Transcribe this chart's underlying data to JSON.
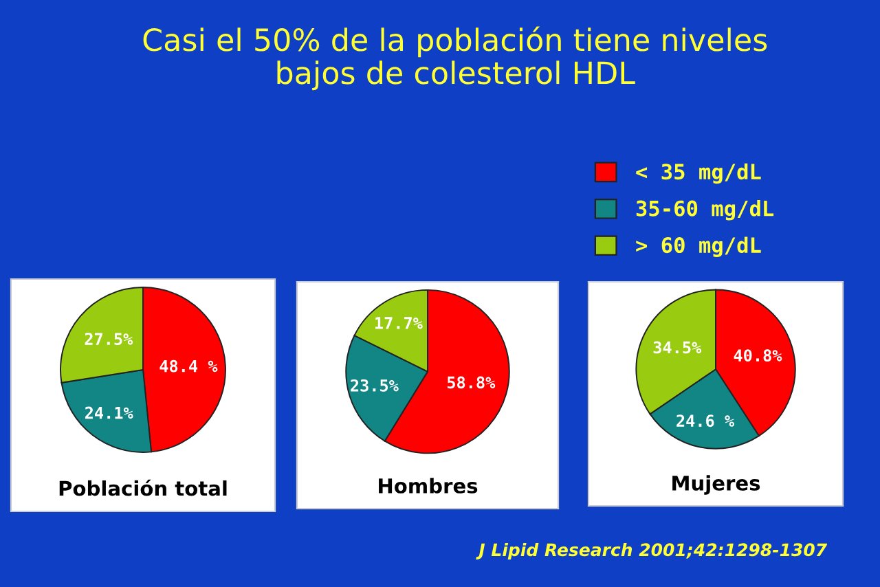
{
  "chart_data": [
    {
      "type": "pie",
      "title": "Casi el 50% de la población tiene niveles\nbajos de colesterol HDL",
      "xlabel": "Población total",
      "categories": [
        "< 35 mg/dL",
        "35-60 mg/dL",
        "> 60 mg/dL"
      ],
      "values": [
        48.4,
        24.1,
        27.5
      ],
      "value_labels": [
        "48.4 %",
        "24.1%",
        "27.5%"
      ],
      "colors": [
        "#ff0000",
        "#128585",
        "#99cc11"
      ],
      "legend": "top right"
    },
    {
      "type": "pie",
      "xlabel": "Hombres",
      "categories": [
        null,
        null,
        null
      ],
      "values": [
        58.8,
        23.5,
        17.7
      ],
      "value_labels": [
        "58.8%",
        "23.5%",
        "17.7%"
      ],
      "colors": [
        "#ff0000",
        "#128585",
        "#99cc11"
      ]
    },
    {
      "type": "pie",
      "xlabel": "Mujeres",
      "categories": [
        null,
        null,
        null
      ],
      "values": [
        40.8,
        24.6,
        34.5
      ],
      "value_labels": [
        "40.8%",
        "24.6 %",
        "34.5%"
      ],
      "colors": [
        "#ff0000",
        "#128585",
        "#99cc11"
      ],
      "annotations": [
        "J Lipid Research 2001;42:1298-1307"
      ]
    }
  ]
}
